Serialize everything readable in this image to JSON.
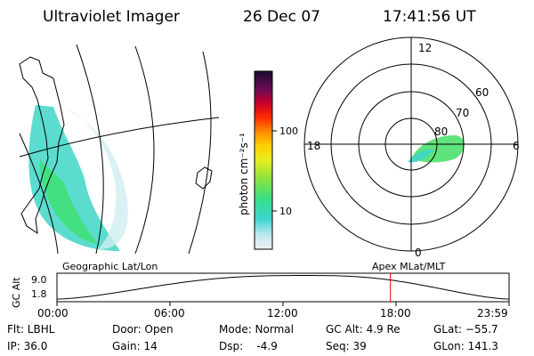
{
  "header": {
    "title": "Ultraviolet Imager",
    "date": "26 Dec 07",
    "time": "17:41:56 UT"
  },
  "colorbar": {
    "unit_label": "photon cm⁻²s⁻¹",
    "ticks": [
      "100",
      "10"
    ]
  },
  "polar": {
    "mlt_labels": [
      "12",
      "18",
      "6",
      "0"
    ],
    "lat_labels": [
      "60",
      "70",
      "80"
    ]
  },
  "altitude_plot": {
    "ylabel": "GC Alt",
    "yticks": [
      "9.0",
      "1.8"
    ],
    "left_label": "Geographic Lat/Lon",
    "right_label": "Apex MLat/MLT",
    "xticks": [
      "00:00",
      "06:00",
      "12:00",
      "18:00",
      "23:59"
    ],
    "marker_hours": 17.7,
    "marker_color": "#ff0000",
    "minimum_hours": 13.2
  },
  "info": {
    "filter": "Flt: LBHL",
    "ip": "IP: 36.0",
    "door": "Door: Open",
    "gain": "Gain: 14",
    "mode": "Mode: Normal",
    "dsp": "Dsp:    -4.9",
    "gc_alt": "GC Alt: 4.9 Re",
    "seq": "Seq: 39",
    "glat": "GLat: −55.7",
    "glon": "GLon: 141.3"
  }
}
